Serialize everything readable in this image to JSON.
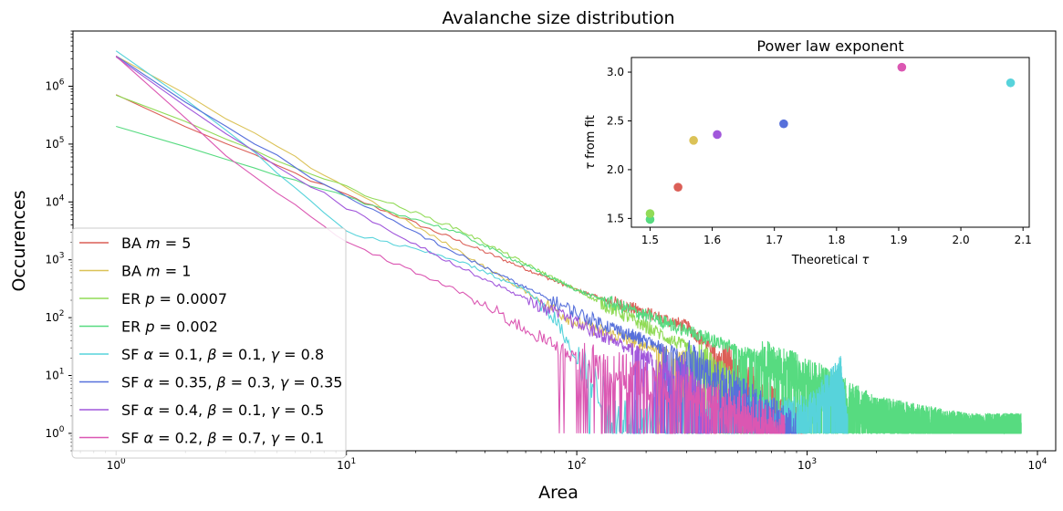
{
  "chart_data": [
    {
      "type": "line",
      "title": "Avalanche size distribution",
      "xlabel": "Area",
      "ylabel": "Occurences",
      "xscale": "log",
      "yscale": "log",
      "xlim": [
        0.65,
        12000
      ],
      "ylim": [
        0.5,
        9000000
      ],
      "xticks": [
        {
          "value": 1,
          "exp": "0"
        },
        {
          "value": 10,
          "exp": "1"
        },
        {
          "value": 100,
          "exp": "2"
        },
        {
          "value": 1000,
          "exp": "3"
        },
        {
          "value": 10000,
          "exp": "4"
        }
      ],
      "yticks": [
        {
          "value": 1,
          "exp": "0"
        },
        {
          "value": 10,
          "exp": "1"
        },
        {
          "value": 100,
          "exp": "2"
        },
        {
          "value": 1000,
          "exp": "3"
        },
        {
          "value": 10000,
          "exp": "4"
        },
        {
          "value": 100000,
          "exp": "5"
        },
        {
          "value": 1000000,
          "exp": "6"
        }
      ],
      "tick_base": "10",
      "legend_position": "lower-left",
      "series": [
        {
          "name": "BA m = 5",
          "label_parts": [
            "BA ",
            "m",
            " = 5"
          ],
          "color": "#db5f57",
          "points": [
            [
              1,
              700000
            ],
            [
              3,
              100000
            ],
            [
              10,
              13000
            ],
            [
              30,
              2200
            ],
            [
              100,
              300
            ],
            [
              300,
              70
            ],
            [
              1000,
              1
            ]
          ]
        },
        {
          "name": "BA m = 1",
          "label_parts": [
            "BA ",
            "m",
            " = 1"
          ],
          "color": "#dbc257",
          "points": [
            [
              1,
              3300000
            ],
            [
              3,
              280000
            ],
            [
              10,
              18000
            ],
            [
              30,
              1500
            ],
            [
              80,
              140
            ],
            [
              100,
              80
            ],
            [
              300,
              20
            ],
            [
              330,
              1
            ]
          ]
        },
        {
          "name": "ER p = 0.0007",
          "label_parts": [
            "ER ",
            "p",
            " = 0.0007"
          ],
          "color": "#91db57",
          "points": [
            [
              1,
              700000
            ],
            [
              3,
              120000
            ],
            [
              10,
              18000
            ],
            [
              30,
              3500
            ],
            [
              100,
              300
            ],
            [
              300,
              30
            ],
            [
              800,
              1
            ]
          ]
        },
        {
          "name": "ER p = 0.002",
          "label_parts": [
            "ER ",
            "p",
            " = 0.002"
          ],
          "color": "#57db80",
          "points": [
            [
              1,
              200000
            ],
            [
              10,
              12000
            ],
            [
              30,
              3000
            ],
            [
              100,
              300
            ],
            [
              300,
              60
            ],
            [
              1000,
              10
            ],
            [
              2000,
              2
            ],
            [
              5000,
              1
            ],
            [
              8500,
              1
            ]
          ]
        },
        {
          "name": "SF α = 0.1, β = 0.1, γ = 0.8",
          "label_parts": [
            "SF ",
            "α",
            " = 0.1, ",
            "β",
            " = 0.1, ",
            "γ",
            " = 0.8"
          ],
          "color": "#57d3db",
          "points": [
            [
              1,
              4300000
            ],
            [
              3,
              180000
            ],
            [
              10,
              3000
            ],
            [
              30,
              1000
            ],
            [
              60,
              300
            ],
            [
              80,
              100
            ],
            [
              100,
              20
            ],
            [
              150,
              2
            ],
            [
              300,
              2
            ],
            [
              1000,
              2
            ],
            [
              1400,
              10
            ],
            [
              1500,
              1
            ]
          ]
        },
        {
          "name": "SF α = 0.35, β = 0.3, γ = 0.35",
          "label_parts": [
            "SF ",
            "α",
            " = 0.35, ",
            "β",
            " = 0.3, ",
            "γ",
            " = 0.35"
          ],
          "color": "#5770db",
          "points": [
            [
              1,
              3300000
            ],
            [
              3,
              200000
            ],
            [
              10,
              12000
            ],
            [
              30,
              1300
            ],
            [
              100,
              120
            ],
            [
              300,
              20
            ],
            [
              600,
              3
            ],
            [
              900,
              1
            ]
          ]
        },
        {
          "name": "SF α = 0.4, β = 0.1, γ = 0.5",
          "label_parts": [
            "SF ",
            "α",
            " = 0.4, ",
            "β",
            " = 0.1, ",
            "γ",
            " = 0.5"
          ],
          "color": "#a157db",
          "points": [
            [
              1,
              3300000
            ],
            [
              3,
              150000
            ],
            [
              10,
              8000
            ],
            [
              30,
              800
            ],
            [
              100,
              80
            ],
            [
              300,
              10
            ],
            [
              400,
              1
            ]
          ]
        },
        {
          "name": "SF α = 0.2, β = 0.7, γ = 0.1",
          "label_parts": [
            "SF ",
            "α",
            " = 0.2, ",
            "β",
            " = 0.7, ",
            "γ",
            " = 0.1"
          ],
          "color": "#db57b2",
          "points": [
            [
              1,
              3300000
            ],
            [
              3,
              60000
            ],
            [
              10,
              2000
            ],
            [
              30,
              300
            ],
            [
              100,
              20
            ],
            [
              300,
              5
            ],
            [
              600,
              2
            ],
            [
              800,
              1
            ]
          ]
        }
      ]
    },
    {
      "type": "scatter",
      "title": "Power law exponent",
      "xlabel_parts": [
        "Theoretical ",
        "τ"
      ],
      "ylabel_parts": [
        "τ",
        " from fit"
      ],
      "xlim": [
        1.47,
        2.11
      ],
      "ylim": [
        1.41,
        3.15
      ],
      "xticks": [
        "1.5",
        "1.6",
        "1.7",
        "1.8",
        "1.9",
        "2.0",
        "2.1"
      ],
      "yticks": [
        "1.5",
        "2.0",
        "2.5",
        "3.0"
      ],
      "points": [
        {
          "x": 1.5,
          "y": 1.49,
          "color": "#57db80"
        },
        {
          "x": 1.5,
          "y": 1.55,
          "color": "#91db57"
        },
        {
          "x": 1.545,
          "y": 1.82,
          "color": "#db5f57"
        },
        {
          "x": 1.57,
          "y": 2.3,
          "color": "#dbc257"
        },
        {
          "x": 1.608,
          "y": 2.36,
          "color": "#a157db"
        },
        {
          "x": 1.715,
          "y": 2.47,
          "color": "#5770db"
        },
        {
          "x": 1.905,
          "y": 3.05,
          "color": "#db57b2"
        },
        {
          "x": 2.08,
          "y": 2.89,
          "color": "#57d3db"
        }
      ]
    }
  ]
}
